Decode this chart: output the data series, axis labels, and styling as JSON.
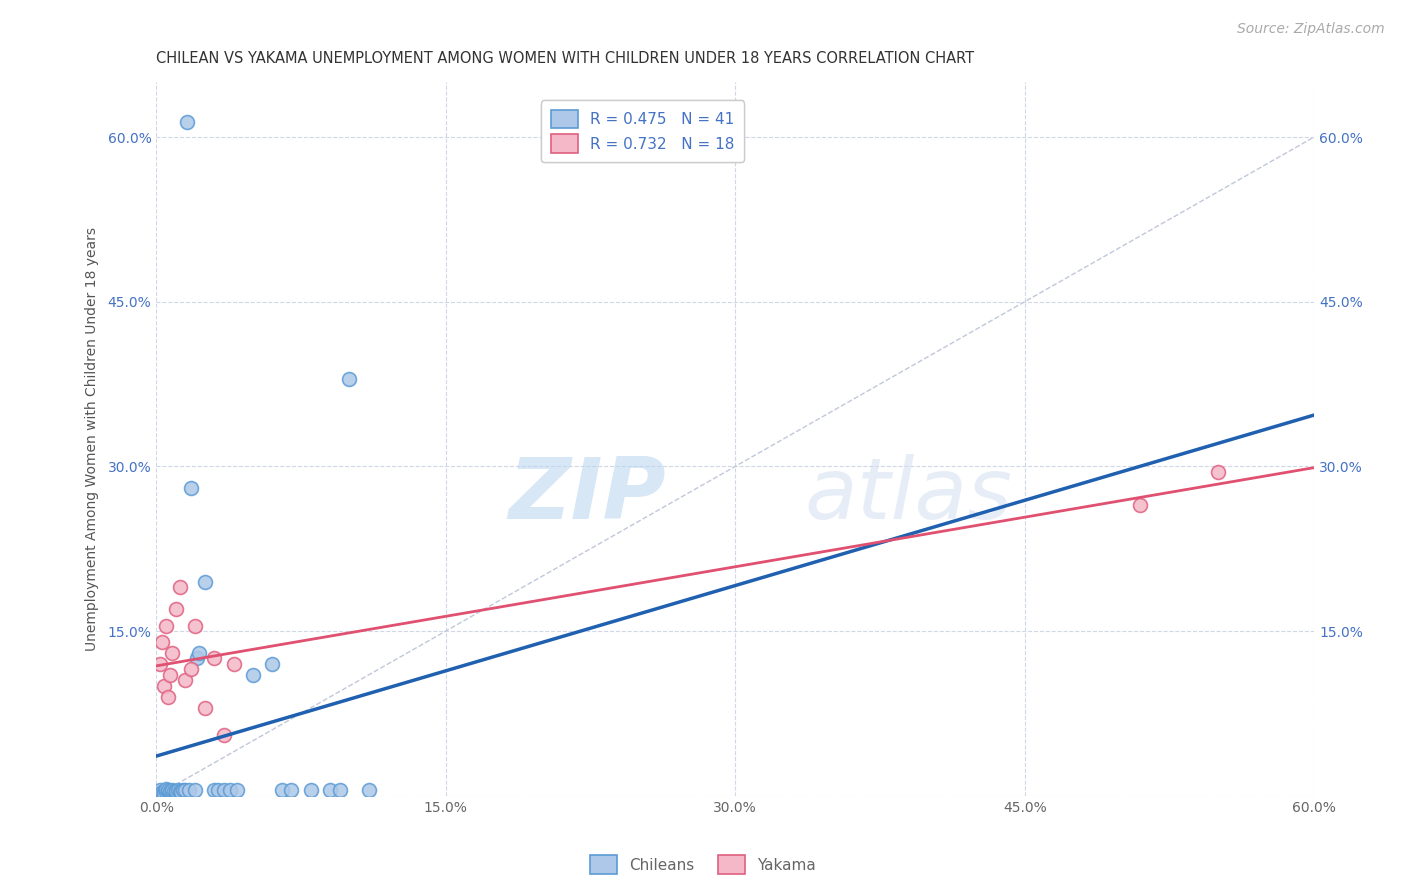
{
  "title": "CHILEAN VS YAKAMA UNEMPLOYMENT AMONG WOMEN WITH CHILDREN UNDER 18 YEARS CORRELATION CHART",
  "source": "Source: ZipAtlas.com",
  "ylabel": "Unemployment Among Women with Children Under 18 years",
  "xlim": [
    0.0,
    0.6
  ],
  "ylim": [
    0.0,
    0.65
  ],
  "xtick_vals": [
    0.0,
    0.15,
    0.3,
    0.45,
    0.6
  ],
  "ytick_vals": [
    0.0,
    0.15,
    0.3,
    0.45,
    0.6
  ],
  "chileans_color": "#adc8e8",
  "chileans_edge_color": "#5b9bd5",
  "yakama_color": "#f4b8c8",
  "yakama_edge_color": "#e06080",
  "chileans_line_color": "#2060b0",
  "yakama_line_color": "#e05070",
  "diagonal_color": "#c0c8d8",
  "legend_label_1": "R = 0.475   N = 41",
  "legend_label_2": "R = 0.732   N = 18",
  "bottom_legend_1": "Chileans",
  "bottom_legend_2": "Yakama",
  "watermark_zip": "ZIP",
  "watermark_atlas": "atlas",
  "background_color": "#ffffff",
  "grid_color": "#d0d8e8",
  "chileans_x": [
    0.002,
    0.003,
    0.004,
    0.004,
    0.005,
    0.005,
    0.006,
    0.006,
    0.007,
    0.007,
    0.008,
    0.008,
    0.009,
    0.01,
    0.01,
    0.011,
    0.012,
    0.013,
    0.014,
    0.015,
    0.016,
    0.017,
    0.018,
    0.02,
    0.021,
    0.022,
    0.025,
    0.03,
    0.032,
    0.035,
    0.038,
    0.042,
    0.05,
    0.06,
    0.065,
    0.07,
    0.08,
    0.09,
    0.095,
    0.1,
    0.11
  ],
  "chileans_y": [
    0.005,
    0.003,
    0.004,
    0.002,
    0.003,
    0.006,
    0.004,
    0.005,
    0.003,
    0.004,
    0.003,
    0.005,
    0.004,
    0.003,
    0.004,
    0.005,
    0.004,
    0.003,
    0.005,
    0.005,
    0.614,
    0.005,
    0.28,
    0.005,
    0.125,
    0.13,
    0.195,
    0.005,
    0.005,
    0.005,
    0.005,
    0.005,
    0.11,
    0.12,
    0.005,
    0.005,
    0.005,
    0.005,
    0.005,
    0.38,
    0.005
  ],
  "yakama_x": [
    0.002,
    0.003,
    0.004,
    0.005,
    0.006,
    0.007,
    0.008,
    0.01,
    0.012,
    0.015,
    0.018,
    0.02,
    0.025,
    0.03,
    0.035,
    0.04,
    0.51,
    0.55
  ],
  "yakama_y": [
    0.12,
    0.14,
    0.1,
    0.155,
    0.09,
    0.11,
    0.13,
    0.17,
    0.19,
    0.105,
    0.115,
    0.155,
    0.08,
    0.125,
    0.055,
    0.12,
    0.265,
    0.295
  ],
  "marker_size": 100,
  "title_fontsize": 10.5,
  "axis_label_fontsize": 10,
  "tick_fontsize": 10,
  "legend_fontsize": 11,
  "source_fontsize": 10
}
